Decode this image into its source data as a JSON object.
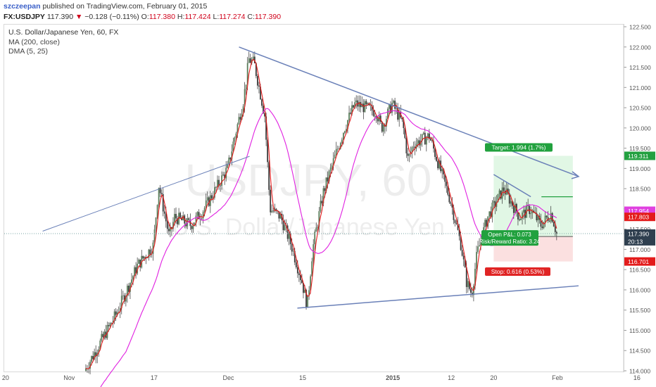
{
  "header": {
    "author": "szczeepan",
    "published_text": "published on TradingView.com, February 01, 2015",
    "symbol": "FX:USDJPY",
    "last": "117.390",
    "change_arrow": "▼",
    "change": "−0.128 (−0.11%)",
    "o_label": "O:",
    "o": "117.380",
    "h_label": "H:",
    "h": "117.424",
    "l_label": "L:",
    "l": "117.274",
    "c_label": "C:",
    "c": "117.390"
  },
  "legend": {
    "title": "U.S. Dollar/Japanese Yen, 60, FX",
    "ma": "MA (200, close)",
    "dma": "DMA (5, 25)"
  },
  "watermark": {
    "symbol": "USDJPY, 60",
    "name": "U.S. Dollar/Japanese Yen"
  },
  "trade_labels": {
    "target": "Target: 1.994 (1.7%)",
    "stop": "Stop: 0.616 (0.53%)",
    "open_pl": "Open P&L: 0.073",
    "rr": "Risk/Reward Ratio: 3.24"
  },
  "price_tags": [
    {
      "value": "119.311",
      "color": "#22a040"
    },
    {
      "value": "117.954",
      "color": "#e040e0"
    },
    {
      "value": "117.803",
      "color": "#e31b1b"
    },
    {
      "value": "117.390",
      "color": "#2f3f4f"
    },
    {
      "value": "20:13",
      "color": "#2f3f4f"
    },
    {
      "value": "116.701",
      "color": "#e31b1b"
    }
  ],
  "colors": {
    "up": "#3a3a3a",
    "down": "#3a3a3a",
    "dma": "#e31b1b",
    "ma200": "#e020e0",
    "trendline": "#6a80b8"
  },
  "chart_data": {
    "type": "candlestick",
    "symbol": "FX:USDJPY",
    "interval": "60",
    "ylim": [
      114.0,
      122.5
    ],
    "y_ticks": [
      114.0,
      114.5,
      115.0,
      115.5,
      116.0,
      116.5,
      117.0,
      117.5,
      118.0,
      118.5,
      119.0,
      119.5,
      120.0,
      120.5,
      121.0,
      121.5,
      122.0,
      122.5
    ],
    "x_tick_labels": [
      "20",
      "Nov",
      "17",
      "Dec",
      "15",
      "2015",
      "12",
      "20",
      "Feb",
      "16"
    ],
    "price_path": {
      "dates": [
        "2014-11-04",
        "2014-11-07",
        "2014-11-10",
        "2014-11-12",
        "2014-11-14",
        "2014-11-17",
        "2014-11-18",
        "2014-11-20",
        "2014-11-21",
        "2014-11-24",
        "2014-11-26",
        "2014-11-27",
        "2014-12-01",
        "2014-12-02",
        "2014-12-04",
        "2014-12-05",
        "2014-12-06",
        "2014-12-08",
        "2014-12-09",
        "2014-12-11",
        "2014-12-13",
        "2014-12-15",
        "2014-12-16",
        "2014-12-17",
        "2014-12-19",
        "2014-12-23",
        "2014-12-25",
        "2014-12-29",
        "2014-12-30",
        "2015-01-01",
        "2015-01-03",
        "2015-01-04",
        "2015-01-05",
        "2015-01-08",
        "2015-01-10",
        "2015-01-12",
        "2015-01-14",
        "2015-01-15",
        "2015-01-16",
        "2015-01-17",
        "2015-01-19",
        "2015-01-22",
        "2015-01-25",
        "2015-01-27",
        "2015-01-29",
        "2015-01-31",
        "2015-02-01"
      ],
      "close": [
        114.0,
        114.7,
        115.4,
        116.0,
        116.6,
        117.1,
        118.6,
        117.3,
        117.8,
        117.6,
        117.9,
        118.1,
        119.0,
        119.6,
        120.7,
        121.7,
        121.6,
        120.3,
        118.0,
        117.8,
        117.1,
        116.2,
        115.6,
        117.0,
        118.4,
        120.0,
        120.6,
        120.4,
        120.0,
        120.6,
        120.1,
        119.2,
        119.6,
        119.8,
        119.0,
        118.2,
        117.1,
        116.2,
        115.9,
        116.9,
        117.8,
        118.5,
        117.8,
        118.0,
        117.6,
        117.9,
        117.39
      ]
    },
    "series": [
      {
        "name": "MA (200, close)"
      },
      {
        "name": "DMA (5, 25)"
      }
    ],
    "trendlines": [
      {
        "from": [
          "2014-12-03",
          122.0
        ],
        "to": [
          "2015-02-05",
          118.8
        ]
      },
      {
        "from": [
          "2014-12-14",
          115.55
        ],
        "to": [
          "2015-02-05",
          116.1
        ]
      },
      {
        "from": [
          "2014-10-27",
          117.45
        ],
        "to": [
          "2014-12-05",
          119.3
        ]
      },
      {
        "from": [
          "2015-01-20",
          118.85
        ],
        "to": [
          "2015-01-27",
          118.3
        ]
      }
    ],
    "position": {
      "entry": 117.317,
      "target": 119.311,
      "stop": 116.701,
      "open_pl": 0.073,
      "risk_reward": 3.24
    }
  }
}
